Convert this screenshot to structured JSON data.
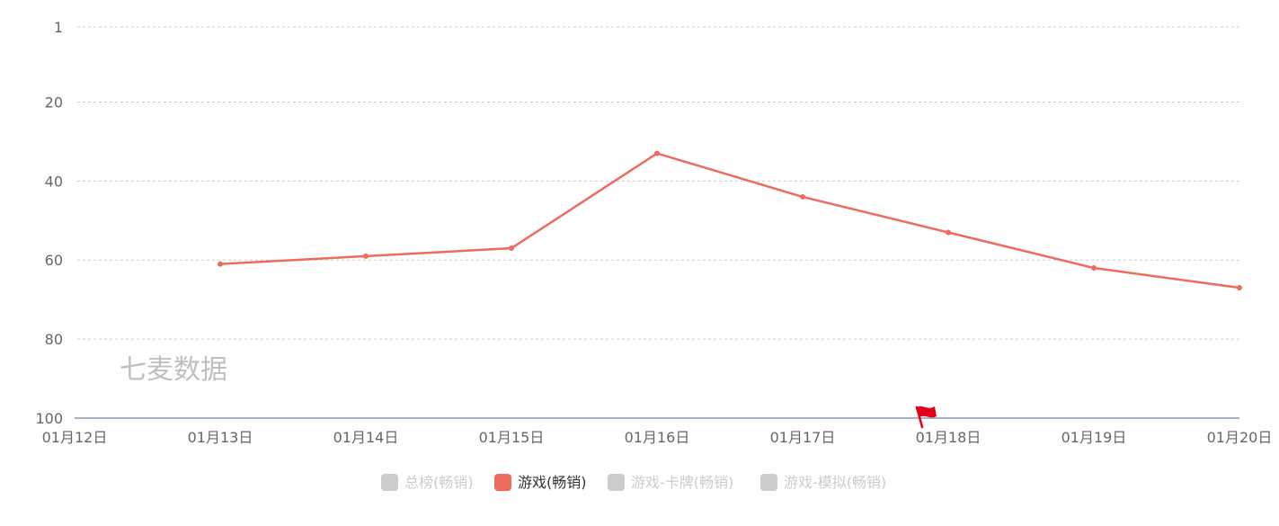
{
  "watermark": "七麦数据",
  "colors": {
    "series": "#ee6b5f",
    "legend_inactive": "#cccccc",
    "grid": "#cccccc",
    "axis": "#8a98ac",
    "tick_text": "#666666",
    "flag": "#e3001b"
  },
  "legend": [
    {
      "label": "总榜(畅销)",
      "active": false
    },
    {
      "label": "游戏(畅销)",
      "active": true
    },
    {
      "label": "游戏-卡牌(畅销)",
      "active": false
    },
    {
      "label": "游戏-模拟(畅销)",
      "active": false
    }
  ],
  "chart_data": {
    "type": "line",
    "title": "",
    "xlabel": "",
    "ylabel": "",
    "x": [
      "01月12日",
      "01月13日",
      "01月14日",
      "01月15日",
      "01月16日",
      "01月17日",
      "01月18日",
      "01月19日",
      "01月20日"
    ],
    "y_ticks": [
      "1",
      "20",
      "40",
      "60",
      "80",
      "100"
    ],
    "ylim": [
      1,
      100
    ],
    "y_inverted": true,
    "grid": true,
    "legend_position": "bottom",
    "series": [
      {
        "name": "游戏(畅销)",
        "values": [
          null,
          61,
          59,
          57,
          33,
          44,
          53,
          62,
          67
        ]
      }
    ],
    "annotations": [
      {
        "type": "flag-icon",
        "x": "01月18日"
      }
    ]
  }
}
